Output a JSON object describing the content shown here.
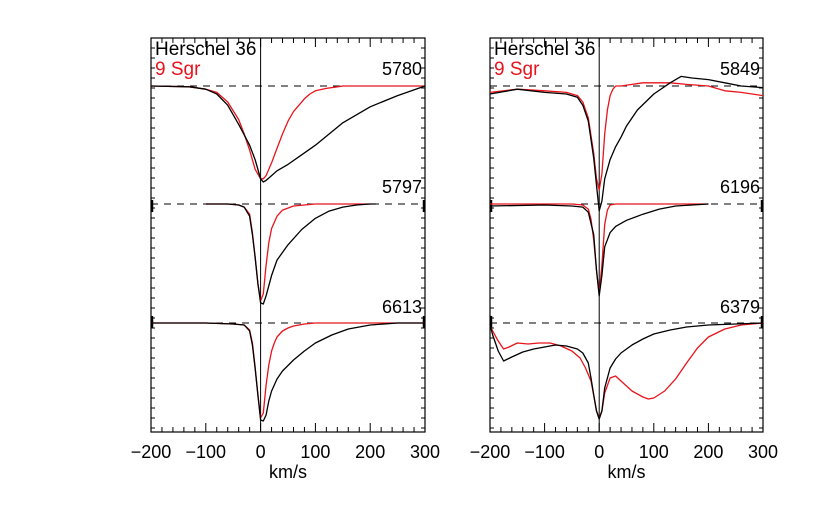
{
  "chart_data": [
    {
      "type": "line",
      "panel": "left",
      "xlabel": "km/s",
      "xlim": [
        -200,
        300
      ],
      "xticks": [
        "-200",
        "-100",
        "0",
        "100",
        "200",
        "300"
      ],
      "legend": [
        "Herschel 36",
        "9 Sgr"
      ],
      "legend_placement": "top-left",
      "colors": {
        "Herschel 36": "#000000",
        "9 Sgr": "#e8141b"
      },
      "grid": false,
      "lines": [
        {
          "label": "5780",
          "continuum_level": 1.0,
          "series": [
            {
              "name": "Herschel 36",
              "x": [
                -200,
                -130,
                -100,
                -80,
                -60,
                -40,
                -20,
                -10,
                0,
                5,
                10,
                20,
                30,
                50,
                75,
                100,
                125,
                150,
                200,
                250,
                300
              ],
              "y": [
                1.0,
                0.995,
                0.98,
                0.95,
                0.88,
                0.76,
                0.63,
                0.54,
                0.42,
                0.4,
                0.41,
                0.44,
                0.47,
                0.51,
                0.57,
                0.63,
                0.7,
                0.77,
                0.87,
                0.94,
                1.0
              ]
            },
            {
              "name": "9 Sgr",
              "x": [
                -200,
                -130,
                -100,
                -80,
                -60,
                -40,
                -30,
                -20,
                -10,
                0,
                5,
                10,
                20,
                30,
                40,
                50,
                60,
                70,
                80,
                90,
                100,
                120,
                140,
                150,
                160,
                180,
                200,
                230,
                260,
                300
              ],
              "y": [
                1.0,
                0.995,
                0.98,
                0.96,
                0.9,
                0.79,
                0.7,
                0.6,
                0.48,
                0.42,
                0.42,
                0.44,
                0.52,
                0.61,
                0.7,
                0.78,
                0.84,
                0.88,
                0.92,
                0.95,
                0.97,
                0.985,
                0.995,
                1.0,
                1.0,
                1.0,
                1.0,
                1.0,
                1.0,
                1.0
              ]
            }
          ]
        },
        {
          "label": "5797",
          "continuum_level": 1.0,
          "series": [
            {
              "name": "Herschel 36",
              "x": [
                -100,
                -60,
                -40,
                -30,
                -20,
                -15,
                -10,
                -5,
                0,
                5,
                10,
                20,
                30,
                50,
                75,
                100,
                125,
                150,
                175,
                200,
                210
              ],
              "y": [
                1.0,
                1.0,
                0.99,
                0.97,
                0.88,
                0.7,
                0.48,
                0.22,
                0.03,
                0.02,
                0.1,
                0.3,
                0.45,
                0.6,
                0.75,
                0.86,
                0.93,
                0.97,
                0.99,
                1.0,
                1.0
              ]
            },
            {
              "name": "9 Sgr",
              "x": [
                -100,
                -60,
                -40,
                -30,
                -20,
                -15,
                -10,
                -5,
                0,
                5,
                10,
                15,
                20,
                30,
                40,
                60,
                80,
                100,
                150,
                200
              ],
              "y": [
                1.0,
                1.0,
                0.99,
                0.97,
                0.9,
                0.72,
                0.48,
                0.22,
                0.05,
                0.12,
                0.4,
                0.62,
                0.76,
                0.88,
                0.94,
                0.98,
                0.99,
                1.0,
                1.0,
                1.0
              ]
            }
          ]
        },
        {
          "label": "6613",
          "continuum_level": 1.0,
          "series": [
            {
              "name": "Herschel 36",
              "x": [
                -200,
                -100,
                -50,
                -30,
                -20,
                -15,
                -10,
                -5,
                0,
                5,
                10,
                15,
                20,
                30,
                40,
                60,
                80,
                100,
                130,
                160,
                200,
                250,
                300
              ],
              "y": [
                1.0,
                1.0,
                0.99,
                0.98,
                0.92,
                0.78,
                0.55,
                0.28,
                0.03,
                0.02,
                0.08,
                0.22,
                0.32,
                0.44,
                0.52,
                0.63,
                0.72,
                0.8,
                0.88,
                0.94,
                0.98,
                1.0,
                1.0
              ]
            },
            {
              "name": "9 Sgr",
              "x": [
                -200,
                -100,
                -50,
                -30,
                -20,
                -15,
                -10,
                -5,
                0,
                5,
                10,
                15,
                20,
                25,
                30,
                40,
                50,
                60,
                80,
                100,
                150,
                200,
                250,
                300
              ],
              "y": [
                1.0,
                1.0,
                0.99,
                0.98,
                0.93,
                0.8,
                0.56,
                0.28,
                0.05,
                0.1,
                0.38,
                0.58,
                0.72,
                0.8,
                0.86,
                0.92,
                0.95,
                0.97,
                0.99,
                1.0,
                1.0,
                1.0,
                1.0,
                1.0
              ]
            }
          ]
        }
      ]
    },
    {
      "type": "line",
      "panel": "right",
      "xlabel": "km/s",
      "xlim": [
        -200,
        300
      ],
      "xticks": [
        "-200",
        "-100",
        "0",
        "100",
        "200",
        "300"
      ],
      "legend": [
        "Herschel 36",
        "9 Sgr"
      ],
      "legend_placement": "top-left",
      "colors": {
        "Herschel 36": "#000000",
        "9 Sgr": "#e8141b"
      },
      "grid": false,
      "lines": [
        {
          "label": "5849",
          "continuum_level": 1.0,
          "series": [
            {
              "name": "Herschel 36",
              "x": [
                -200,
                -150,
                -100,
                -60,
                -40,
                -30,
                -20,
                -10,
                -5,
                0,
                5,
                10,
                20,
                30,
                40,
                50,
                70,
                100,
                130,
                150,
                170,
                200,
                230,
                260,
                300
              ],
              "y": [
                0.95,
                0.98,
                0.96,
                0.95,
                0.93,
                0.88,
                0.78,
                0.55,
                0.38,
                0.22,
                0.28,
                0.42,
                0.54,
                0.62,
                0.68,
                0.75,
                0.85,
                0.95,
                1.02,
                1.06,
                1.05,
                1.04,
                1.02,
                1.0,
                0.99
              ]
            },
            {
              "name": "9 Sgr",
              "x": [
                -200,
                -150,
                -100,
                -60,
                -40,
                -30,
                -20,
                -10,
                -5,
                0,
                5,
                10,
                15,
                20,
                25,
                30,
                40,
                60,
                80,
                100,
                130,
                160,
                200,
                230,
                260,
                300
              ],
              "y": [
                0.96,
                0.98,
                0.97,
                0.96,
                0.94,
                0.9,
                0.8,
                0.58,
                0.42,
                0.35,
                0.45,
                0.7,
                0.85,
                0.94,
                0.98,
                1.0,
                1.0,
                1.01,
                1.02,
                1.02,
                1.02,
                1.01,
                1.0,
                0.97,
                0.96,
                0.94
              ]
            }
          ]
        },
        {
          "label": "6196",
          "continuum_level": 1.0,
          "series": [
            {
              "name": "Herschel 36",
              "x": [
                -200,
                -100,
                -50,
                -30,
                -20,
                -10,
                -5,
                0,
                5,
                10,
                20,
                30,
                50,
                80,
                110,
                140,
                170,
                200
              ],
              "y": [
                0.98,
                0.99,
                0.98,
                0.97,
                0.92,
                0.7,
                0.35,
                0.1,
                0.3,
                0.58,
                0.72,
                0.78,
                0.84,
                0.9,
                0.95,
                0.98,
                0.99,
                1.0
              ]
            },
            {
              "name": "9 Sgr",
              "x": [
                -200,
                -100,
                -50,
                -30,
                -20,
                -15,
                -10,
                -5,
                0,
                5,
                10,
                15,
                20,
                30,
                50,
                80,
                120,
                160,
                200
              ],
              "y": [
                1.0,
                1.0,
                1.0,
                0.99,
                0.95,
                0.85,
                0.65,
                0.35,
                0.12,
                0.4,
                0.8,
                0.94,
                0.99,
                1.0,
                1.0,
                1.0,
                1.0,
                1.0,
                1.0
              ]
            }
          ]
        },
        {
          "label": "6379",
          "continuum_level": 1.0,
          "series": [
            {
              "name": "Herschel 36",
              "x": [
                -200,
                -195,
                -185,
                -175,
                -160,
                -140,
                -120,
                -100,
                -80,
                -60,
                -40,
                -30,
                -20,
                -15,
                -10,
                -5,
                0,
                5,
                10,
                20,
                30,
                40,
                60,
                80,
                100,
                130,
                160,
                200,
                250,
                300
              ],
              "y": [
                0.98,
                0.88,
                0.72,
                0.62,
                0.66,
                0.71,
                0.74,
                0.76,
                0.78,
                0.77,
                0.74,
                0.7,
                0.6,
                0.45,
                0.28,
                0.12,
                0.04,
                0.12,
                0.35,
                0.55,
                0.64,
                0.7,
                0.78,
                0.84,
                0.89,
                0.93,
                0.96,
                0.98,
                0.99,
                1.0
              ]
            },
            {
              "name": "9 Sgr",
              "x": [
                -200,
                -195,
                -185,
                -175,
                -165,
                -150,
                -130,
                -110,
                -90,
                -70,
                -50,
                -35,
                -25,
                -15,
                -10,
                -5,
                0,
                5,
                10,
                20,
                30,
                40,
                60,
                80,
                90,
                100,
                120,
                140,
                160,
                180,
                200,
                230,
                260,
                300
              ],
              "y": [
                0.97,
                0.92,
                0.82,
                0.74,
                0.76,
                0.8,
                0.79,
                0.8,
                0.8,
                0.77,
                0.72,
                0.65,
                0.55,
                0.42,
                0.28,
                0.12,
                0.05,
                0.12,
                0.3,
                0.45,
                0.47,
                0.42,
                0.32,
                0.26,
                0.24,
                0.25,
                0.32,
                0.44,
                0.6,
                0.75,
                0.86,
                0.94,
                0.98,
                1.0
              ]
            }
          ]
        }
      ]
    }
  ]
}
